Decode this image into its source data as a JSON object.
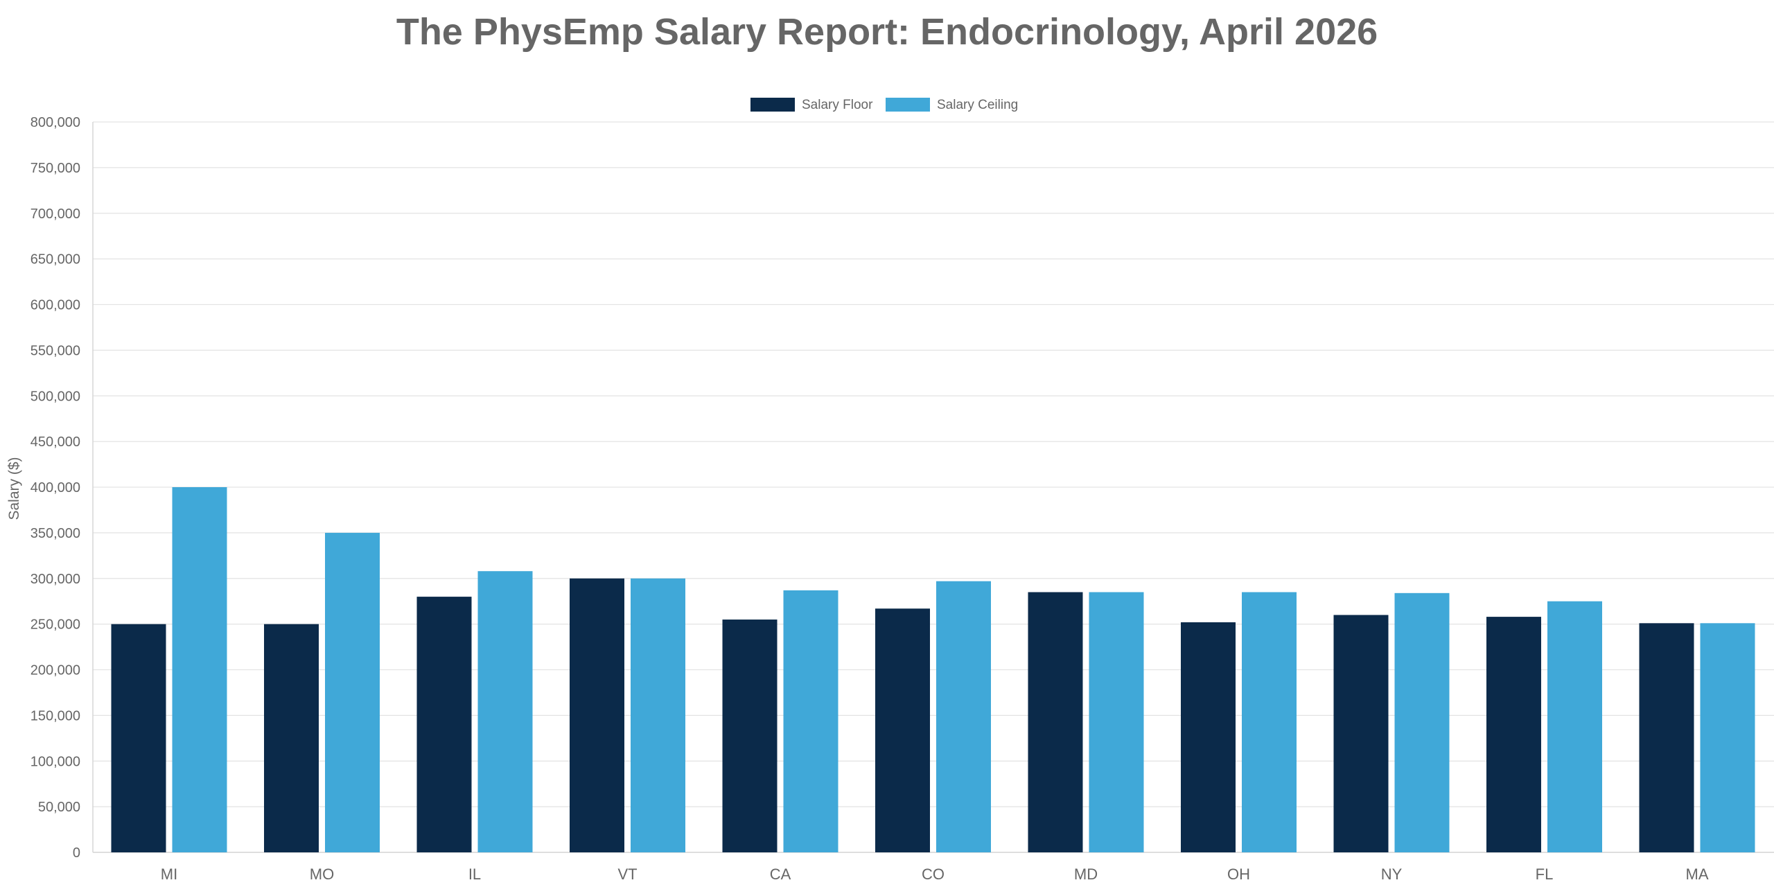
{
  "chart_data": {
    "type": "bar",
    "title": "The PhysEmp Salary Report: Endocrinology, April 2026",
    "xlabel": "",
    "ylabel": "Salary ($)",
    "ylim": [
      0,
      800000
    ],
    "yticks": [
      0,
      50000,
      100000,
      150000,
      200000,
      250000,
      300000,
      350000,
      400000,
      450000,
      500000,
      550000,
      600000,
      650000,
      700000,
      750000,
      800000
    ],
    "ytick_labels": [
      "0",
      "50,000",
      "100,000",
      "150,000",
      "200,000",
      "250,000",
      "300,000",
      "350,000",
      "400,000",
      "450,000",
      "500,000",
      "550,000",
      "600,000",
      "650,000",
      "700,000",
      "750,000",
      "800,000"
    ],
    "categories": [
      "MI",
      "MO",
      "IL",
      "VT",
      "CA",
      "CO",
      "MD",
      "OH",
      "NY",
      "FL",
      "MA"
    ],
    "series": [
      {
        "name": "Salary Floor",
        "color": "#0b2a4a",
        "values": [
          250000,
          250000,
          280000,
          300000,
          255000,
          267000,
          285000,
          252000,
          260000,
          258000,
          251000
        ]
      },
      {
        "name": "Salary Ceiling",
        "color": "#40a8d8",
        "values": [
          400000,
          350000,
          308000,
          300000,
          287000,
          297000,
          285000,
          285000,
          284000,
          275000,
          251000
        ]
      }
    ],
    "grid": true,
    "legend_position": "top-center"
  }
}
